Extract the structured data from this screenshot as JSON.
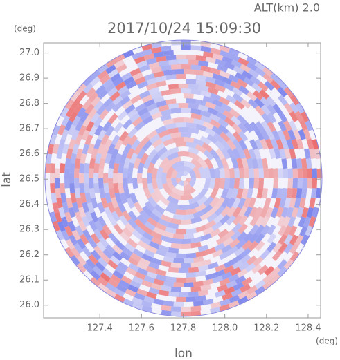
{
  "chart_data": {
    "type": "radar-image",
    "title": "2017/10/24 15:09:30",
    "subtitle": "ALT(km) 2.0",
    "x_label": "lon",
    "y_label": "lat",
    "x_unit": "(deg)",
    "y_unit": "(deg)",
    "xlim": [
      127.13,
      128.46
    ],
    "ylim": [
      25.95,
      27.04
    ],
    "xticks": [
      127.4,
      127.6,
      127.8,
      {
        "value": 128,
        "label": "128.0"
      },
      128.2,
      128.4
    ],
    "yticks": [
      {
        "value": 26,
        "label": "26.0"
      },
      26.1,
      26.2,
      26.3,
      26.4,
      26.5,
      26.6,
      26.7,
      26.8,
      26.9,
      {
        "value": 27,
        "label": "27.0"
      }
    ]
  }
}
